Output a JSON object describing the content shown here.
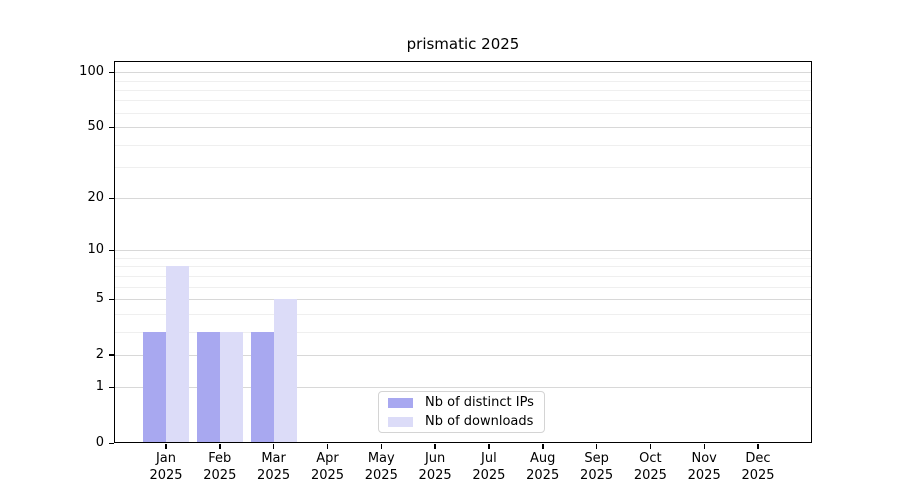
{
  "chart_data": {
    "type": "bar",
    "title": "prismatic 2025",
    "categories": [
      "Jan",
      "Feb",
      "Mar",
      "Apr",
      "May",
      "Jun",
      "Jul",
      "Aug",
      "Sep",
      "Oct",
      "Nov",
      "Dec"
    ],
    "category_sublabel": "2025",
    "series": [
      {
        "key": "distinct-ips",
        "name": "Nb of distinct IPs",
        "color": "#a8a8f0",
        "values": [
          3,
          3,
          3,
          0,
          0,
          0,
          0,
          0,
          0,
          0,
          0,
          0
        ]
      },
      {
        "key": "downloads",
        "name": "Nb of downloads",
        "color": "#dcdcf8",
        "values": [
          8,
          3,
          5,
          0,
          0,
          0,
          0,
          0,
          0,
          0,
          0,
          0
        ]
      }
    ],
    "yscale": "log1p",
    "ylim": [
      0,
      115
    ],
    "yticks_major": [
      0,
      1,
      2,
      5,
      10,
      20,
      50,
      100
    ],
    "yticks_minor": [
      3,
      4,
      6,
      7,
      8,
      9,
      30,
      40,
      60,
      70,
      80,
      90
    ],
    "grid": "horizontal",
    "legend_position": "lower center"
  },
  "colors": {
    "bar_distinct_ips": "#a8a8f0",
    "bar_downloads": "#dcdcf8",
    "grid_major": "#d8d8d8",
    "grid_minor": "#efefef",
    "axis": "#000000",
    "background": "#ffffff"
  }
}
